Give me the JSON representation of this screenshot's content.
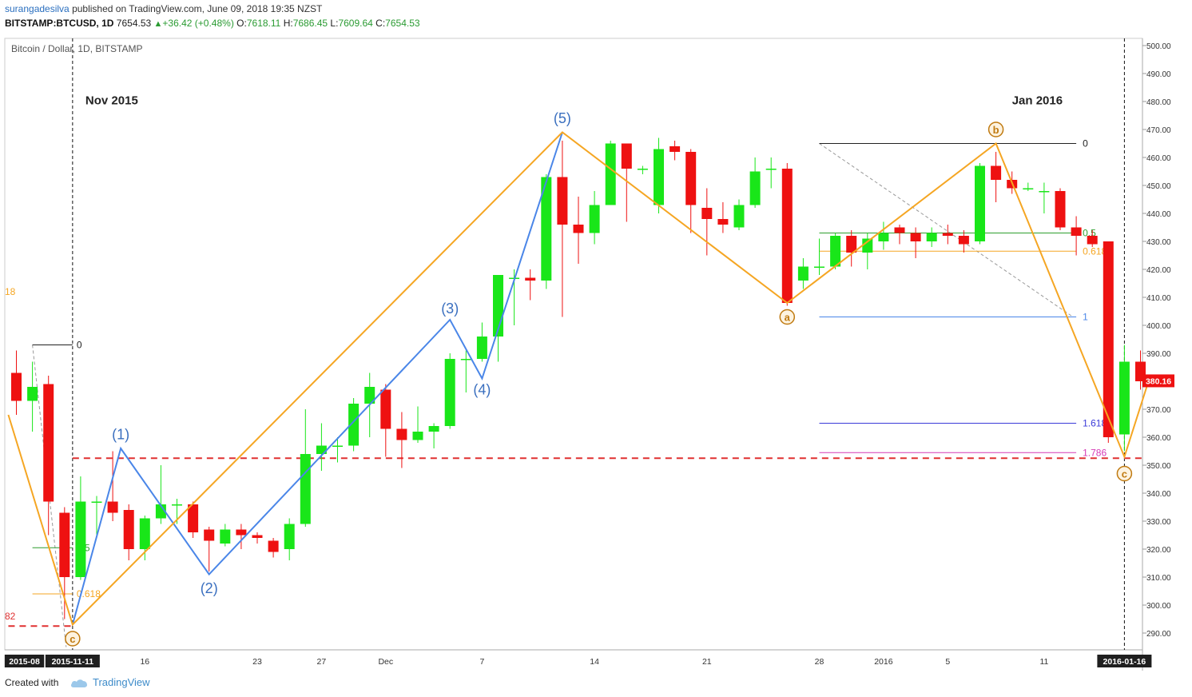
{
  "header": {
    "author": "surangadesilva",
    "published_text": "published on TradingView.com, June 09, 2018 19:35 NZST",
    "symbol": "BITSTAMP:BTCUSD, 1D",
    "last": "7654.53",
    "change": "+36.42 (+0.48%)",
    "o_label": "O:",
    "o_value": "7618.11",
    "h_label": "H:",
    "h_value": "7686.45",
    "l_label": "L:",
    "l_value": "7609.64",
    "c_label": "C:",
    "c_value": "7654.53"
  },
  "footer": {
    "created_with": "Created with",
    "brand": "TradingView"
  },
  "chart_data": {
    "type": "candlestick",
    "title": "Bitcoin / Dollar, 1D, BITSTAMP",
    "ylim": [
      284,
      505
    ],
    "y_ticks": [
      "290.00",
      "300.00",
      "310.00",
      "320.00",
      "330.00",
      "340.00",
      "350.00",
      "360.00",
      "370.00",
      "380.00",
      "390.00",
      "400.00",
      "410.00",
      "420.00",
      "430.00",
      "440.00",
      "450.00",
      "460.00",
      "470.00",
      "480.00",
      "490.00",
      "500.00"
    ],
    "x_ticks": [
      {
        "label": "2015-08",
        "idx": 0.5,
        "boxed": true
      },
      {
        "label": "2015-11-11",
        "idx": 3.5,
        "boxed": true
      },
      {
        "label": "16",
        "idx": 8
      },
      {
        "label": "23",
        "idx": 15
      },
      {
        "label": "27",
        "idx": 19
      },
      {
        "label": "Dec",
        "idx": 23
      },
      {
        "label": "7",
        "idx": 29
      },
      {
        "label": "14",
        "idx": 36
      },
      {
        "label": "21",
        "idx": 43
      },
      {
        "label": "28",
        "idx": 50
      },
      {
        "label": "2016",
        "idx": 54
      },
      {
        "label": "5",
        "idx": 58
      },
      {
        "label": "11",
        "idx": 64
      },
      {
        "label": "2016-01-16",
        "idx": 69,
        "boxed": true
      }
    ],
    "last_price": "380.16",
    "colors": {
      "up": "#19e619",
      "down": "#ee1111",
      "wave_blue": "#4a86e8",
      "wave_orange": "#f5a623",
      "label_blue": "#3a6fbf",
      "label_orange": "#c07a10",
      "dashed_red": "#e03131"
    },
    "candles": [
      {
        "o": 383,
        "h": 391,
        "l": 368,
        "c": 373
      },
      {
        "o": 373,
        "h": 387,
        "l": 362,
        "c": 378
      },
      {
        "o": 379,
        "h": 382,
        "l": 325,
        "c": 337
      },
      {
        "o": 333,
        "h": 335,
        "l": 295,
        "c": 310
      },
      {
        "o": 310,
        "h": 346,
        "l": 309,
        "c": 337
      },
      {
        "o": 337,
        "h": 339,
        "l": 325,
        "c": 337
      },
      {
        "o": 337,
        "h": 355,
        "l": 330,
        "c": 333
      },
      {
        "o": 334,
        "h": 336,
        "l": 316,
        "c": 320
      },
      {
        "o": 320,
        "h": 332,
        "l": 316,
        "c": 331
      },
      {
        "o": 331,
        "h": 350,
        "l": 329,
        "c": 336
      },
      {
        "o": 336,
        "h": 338,
        "l": 329,
        "c": 336
      },
      {
        "o": 336,
        "h": 337,
        "l": 324,
        "c": 326
      },
      {
        "o": 327,
        "h": 328,
        "l": 312,
        "c": 323
      },
      {
        "o": 322,
        "h": 329,
        "l": 321,
        "c": 327
      },
      {
        "o": 327,
        "h": 329,
        "l": 320,
        "c": 325
      },
      {
        "o": 325,
        "h": 326,
        "l": 322,
        "c": 324
      },
      {
        "o": 323,
        "h": 324,
        "l": 317,
        "c": 319
      },
      {
        "o": 320,
        "h": 331,
        "l": 316,
        "c": 329
      },
      {
        "o": 329,
        "h": 370,
        "l": 328,
        "c": 354
      },
      {
        "o": 354,
        "h": 365,
        "l": 348,
        "c": 357
      },
      {
        "o": 357,
        "h": 360,
        "l": 351,
        "c": 357
      },
      {
        "o": 357,
        "h": 374,
        "l": 355,
        "c": 372
      },
      {
        "o": 372,
        "h": 383,
        "l": 360,
        "c": 378
      },
      {
        "o": 377,
        "h": 379,
        "l": 353,
        "c": 363
      },
      {
        "o": 363,
        "h": 369,
        "l": 349,
        "c": 359
      },
      {
        "o": 359,
        "h": 371,
        "l": 358,
        "c": 362
      },
      {
        "o": 362,
        "h": 365,
        "l": 356,
        "c": 364
      },
      {
        "o": 364,
        "h": 390,
        "l": 363,
        "c": 388
      },
      {
        "o": 388,
        "h": 391,
        "l": 376,
        "c": 388
      },
      {
        "o": 388,
        "h": 401,
        "l": 387,
        "c": 396
      },
      {
        "o": 396,
        "h": 418,
        "l": 387,
        "c": 418
      },
      {
        "o": 417,
        "h": 420,
        "l": 400,
        "c": 417
      },
      {
        "o": 417,
        "h": 420,
        "l": 409,
        "c": 416
      },
      {
        "o": 416,
        "h": 454,
        "l": 413,
        "c": 453
      },
      {
        "o": 453,
        "h": 466,
        "l": 403,
        "c": 436
      },
      {
        "o": 436,
        "h": 446,
        "l": 422,
        "c": 433
      },
      {
        "o": 433,
        "h": 448,
        "l": 429,
        "c": 443
      },
      {
        "o": 443,
        "h": 466,
        "l": 443,
        "c": 465
      },
      {
        "o": 465,
        "h": 465,
        "l": 437,
        "c": 456
      },
      {
        "o": 456,
        "h": 457,
        "l": 454,
        "c": 456
      },
      {
        "o": 443,
        "h": 467,
        "l": 440,
        "c": 463
      },
      {
        "o": 464,
        "h": 466,
        "l": 459,
        "c": 462
      },
      {
        "o": 462,
        "h": 463,
        "l": 433,
        "c": 443
      },
      {
        "o": 442,
        "h": 449,
        "l": 425,
        "c": 438
      },
      {
        "o": 438,
        "h": 444,
        "l": 433,
        "c": 436
      },
      {
        "o": 435,
        "h": 445,
        "l": 434,
        "c": 443
      },
      {
        "o": 443,
        "h": 460,
        "l": 442,
        "c": 455
      },
      {
        "o": 456,
        "h": 460,
        "l": 449,
        "c": 456
      },
      {
        "o": 456,
        "h": 458,
        "l": 407,
        "c": 408
      },
      {
        "o": 416,
        "h": 424,
        "l": 413,
        "c": 421
      },
      {
        "o": 421,
        "h": 431,
        "l": 418,
        "c": 421
      },
      {
        "o": 421,
        "h": 433,
        "l": 420,
        "c": 432
      },
      {
        "o": 432,
        "h": 434,
        "l": 421,
        "c": 426
      },
      {
        "o": 426,
        "h": 433,
        "l": 420,
        "c": 431
      },
      {
        "o": 430,
        "h": 437,
        "l": 427,
        "c": 433
      },
      {
        "o": 435,
        "h": 436,
        "l": 429,
        "c": 433
      },
      {
        "o": 433,
        "h": 435,
        "l": 424,
        "c": 430
      },
      {
        "o": 430,
        "h": 435,
        "l": 428,
        "c": 433
      },
      {
        "o": 433,
        "h": 436,
        "l": 429,
        "c": 432
      },
      {
        "o": 432,
        "h": 434,
        "l": 426,
        "c": 429
      },
      {
        "o": 430,
        "h": 458,
        "l": 429,
        "c": 457
      },
      {
        "o": 457,
        "h": 462,
        "l": 444,
        "c": 452
      },
      {
        "o": 452,
        "h": 455,
        "l": 447,
        "c": 449
      },
      {
        "o": 449,
        "h": 451,
        "l": 448,
        "c": 449
      },
      {
        "o": 448,
        "h": 451,
        "l": 440,
        "c": 448
      },
      {
        "o": 448,
        "h": 449,
        "l": 434,
        "c": 435
      },
      {
        "o": 435,
        "h": 439,
        "l": 425,
        "c": 432
      },
      {
        "o": 432,
        "h": 434,
        "l": 428,
        "c": 429
      },
      {
        "o": 430,
        "h": 430,
        "l": 358,
        "c": 360
      },
      {
        "o": 361,
        "h": 393,
        "l": 355,
        "c": 387
      },
      {
        "o": 387,
        "h": 391,
        "l": 377,
        "c": 380
      }
    ],
    "wave_blue": {
      "points": [
        {
          "idx": 3.5,
          "p": 293
        },
        {
          "idx": 6.5,
          "p": 356
        },
        {
          "idx": 12,
          "p": 311
        },
        {
          "idx": 27,
          "p": 402
        },
        {
          "idx": 29,
          "p": 381
        },
        {
          "idx": 34,
          "p": 469
        }
      ],
      "labels": [
        {
          "text": "(1)",
          "idx": 6.5,
          "p": 361
        },
        {
          "text": "(2)",
          "idx": 12,
          "p": 306
        },
        {
          "text": "(3)",
          "idx": 27,
          "p": 406
        },
        {
          "text": "(4)",
          "idx": 29,
          "p": 377
        },
        {
          "text": "(5)",
          "idx": 34,
          "p": 474
        }
      ]
    },
    "wave_orange": {
      "points": [
        {
          "idx": -0.5,
          "p": 368
        },
        {
          "idx": 3.5,
          "p": 293
        },
        {
          "idx": 34,
          "p": 469
        },
        {
          "idx": 48,
          "p": 408
        },
        {
          "idx": 61,
          "p": 465
        },
        {
          "idx": 69,
          "p": 353
        },
        {
          "idx": 70.5,
          "p": 380
        }
      ],
      "labels": [
        {
          "text": "c",
          "idx": 3.5,
          "p": 288
        },
        {
          "text": "a",
          "idx": 48,
          "p": 403
        },
        {
          "text": "b",
          "idx": 61,
          "p": 470
        },
        {
          "text": "c",
          "idx": 69,
          "p": 347
        }
      ]
    },
    "hlines": [
      {
        "p": 352.5,
        "from": 3.5,
        "to": 73,
        "color": "#e03131",
        "dashed": true
      },
      {
        "p": 292.5,
        "from": -0.5,
        "to": 3.5,
        "color": "#e03131",
        "dashed": true
      }
    ],
    "fib_right": [
      {
        "level": "0",
        "p": 465,
        "color": "#222222"
      },
      {
        "level": "0.5",
        "p": 433,
        "color": "#2e9e2e"
      },
      {
        "level": "0.618",
        "p": 426.5,
        "color": "#f5a623"
      },
      {
        "level": "1",
        "p": 403,
        "color": "#4a86e8"
      },
      {
        "level": "1.618",
        "p": 365,
        "color": "#3b3bd8"
      },
      {
        "level": "1.786",
        "p": 354.5,
        "color": "#d63ab5"
      }
    ],
    "fib_left": [
      {
        "level": "0",
        "p": 393,
        "color": "#222222"
      },
      {
        "level": "0.5",
        "p": 320.5,
        "color": "#2e9e2e"
      },
      {
        "level": "0.618",
        "p": 304,
        "color": "#f5a623"
      }
    ],
    "offscreen_labels": [
      {
        "text": "18",
        "p": 412,
        "color": "#f5a623"
      },
      {
        "text": "82",
        "p": 296,
        "color": "#e03131"
      }
    ],
    "annotations": [
      {
        "text": "Nov 2015",
        "idx": 4.3,
        "p": 479
      },
      {
        "text": "Jan 2016",
        "idx": 62,
        "p": 479
      }
    ],
    "vlines": [
      {
        "idx": 3.5
      },
      {
        "idx": 69
      }
    ]
  }
}
